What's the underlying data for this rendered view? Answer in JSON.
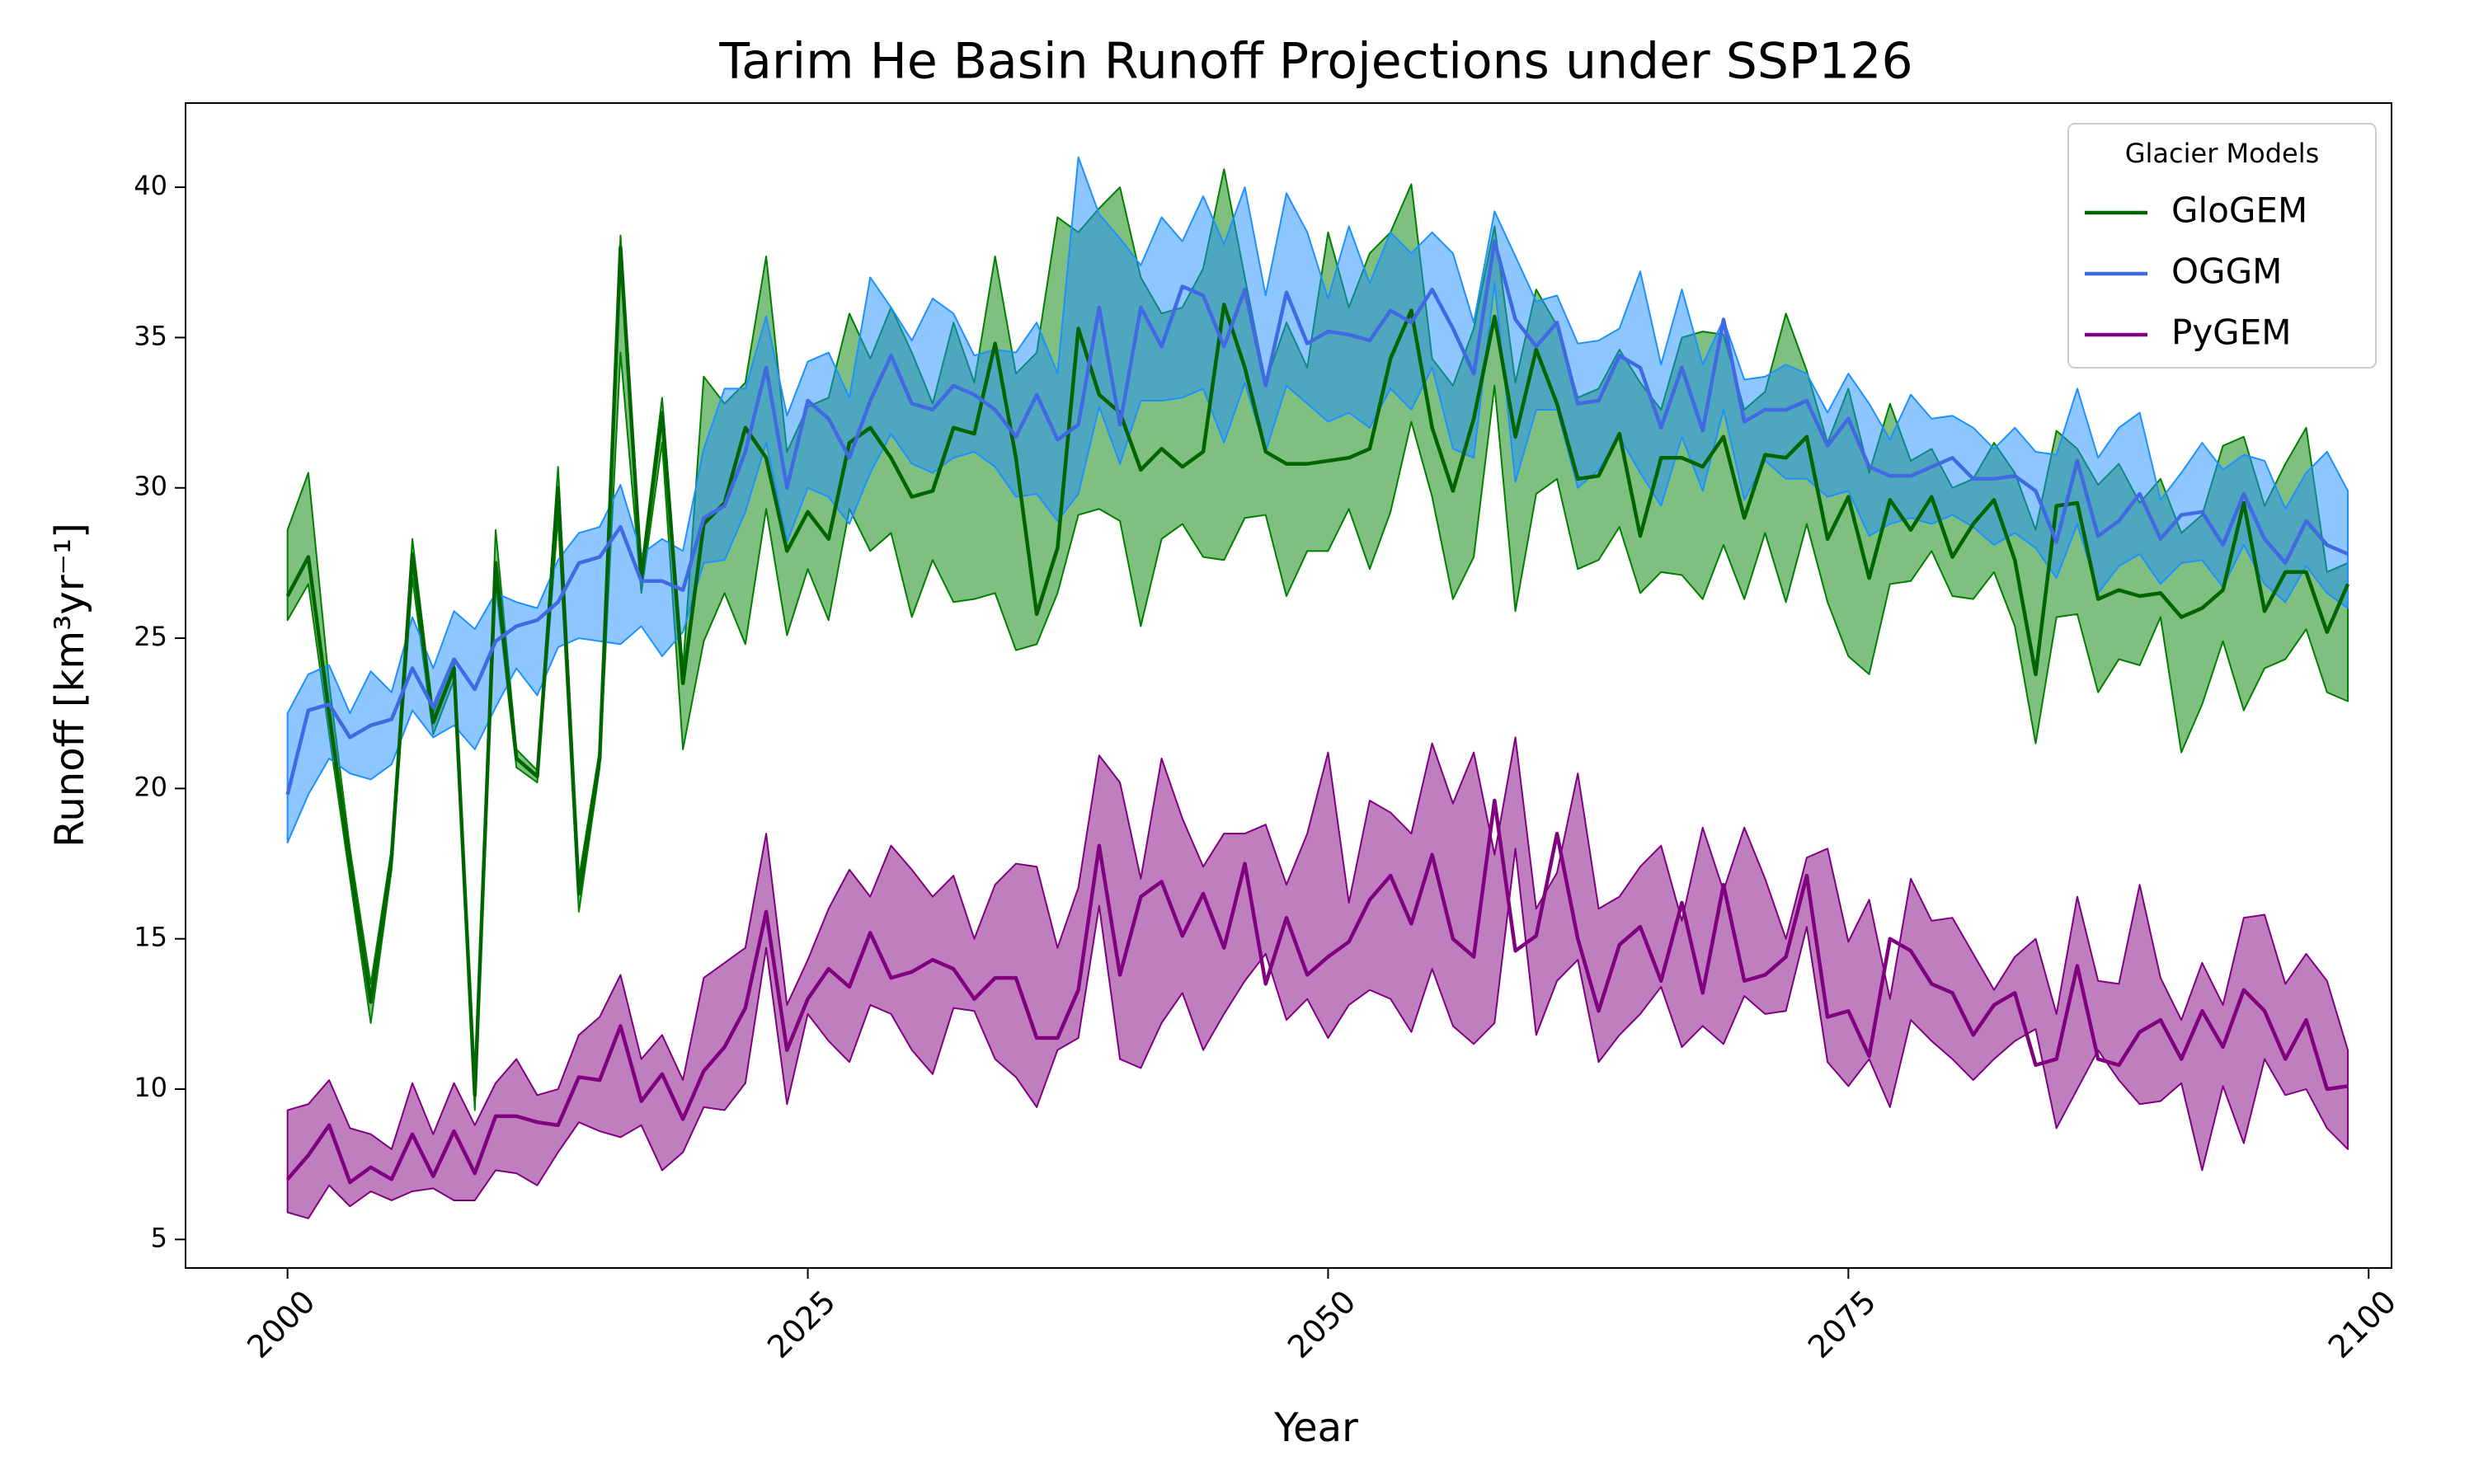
{
  "chart_data": {
    "type": "band-line",
    "title": "Tarim He Basin Runoff Projections under SSP126",
    "x_label": "Year",
    "y_label": "Runoff [km³yr⁻¹]",
    "legend_title": "Glacier Models",
    "legend_position": "upper right",
    "xlim": [
      1995.1,
      2101.1
    ],
    "ylim": [
      4.05,
      42.8
    ],
    "xticks": [
      2000,
      2025,
      2050,
      2075,
      2100
    ],
    "yticks": [
      5,
      10,
      15,
      20,
      25,
      30,
      35,
      40
    ],
    "x": [
      2000,
      2001,
      2002,
      2003,
      2004,
      2005,
      2006,
      2007,
      2008,
      2009,
      2010,
      2011,
      2012,
      2013,
      2014,
      2015,
      2016,
      2017,
      2018,
      2019,
      2020,
      2021,
      2022,
      2023,
      2024,
      2025,
      2026,
      2027,
      2028,
      2029,
      2030,
      2031,
      2032,
      2033,
      2034,
      2035,
      2036,
      2037,
      2038,
      2039,
      2040,
      2041,
      2042,
      2043,
      2044,
      2045,
      2046,
      2047,
      2048,
      2049,
      2050,
      2051,
      2052,
      2053,
      2054,
      2055,
      2056,
      2057,
      2058,
      2059,
      2060,
      2061,
      2062,
      2063,
      2064,
      2065,
      2066,
      2067,
      2068,
      2069,
      2070,
      2071,
      2072,
      2073,
      2074,
      2075,
      2076,
      2077,
      2078,
      2079,
      2080,
      2081,
      2082,
      2083,
      2084,
      2085,
      2086,
      2087,
      2088,
      2089,
      2090,
      2091,
      2092,
      2093,
      2094,
      2095,
      2096,
      2097,
      2098,
      2099
    ],
    "series": [
      {
        "name": "GloGEM",
        "color": "#006400",
        "fill_color": "#008000",
        "values": [
          26.4,
          27.7,
          22.5,
          17.5,
          12.9,
          17.7,
          27.8,
          22.2,
          24.0,
          9.8,
          27.5,
          21.0,
          20.4,
          30.0,
          16.5,
          21.0,
          38.0,
          27.0,
          32.5,
          23.5,
          28.8,
          29.5,
          32.0,
          31.0,
          27.9,
          29.2,
          28.3,
          31.5,
          32.0,
          31.0,
          29.7,
          29.9,
          32.0,
          31.8,
          34.8,
          31.0,
          25.8,
          28.0,
          35.3,
          33.1,
          32.5,
          30.6,
          31.3,
          30.7,
          31.2,
          36.1,
          34.0,
          31.2,
          30.8,
          30.8,
          30.9,
          31.0,
          31.3,
          34.3,
          35.9,
          32.0,
          29.9,
          32.3,
          35.7,
          31.7,
          34.6,
          32.8,
          30.3,
          30.4,
          31.8,
          28.4,
          31.0,
          31.0,
          30.7,
          31.7,
          29.0,
          31.1,
          31.0,
          31.7,
          28.3,
          29.7,
          27.0,
          29.6,
          28.6,
          29.7,
          27.7,
          28.8,
          29.6,
          27.6,
          23.8,
          29.4,
          29.5,
          26.3,
          26.6,
          26.4,
          26.5,
          25.7,
          26.0,
          26.6,
          29.5,
          25.9,
          27.2,
          27.2,
          25.2,
          26.8
        ],
        "upper": [
          28.6,
          30.5,
          23.5,
          18.0,
          13.5,
          18.0,
          28.3,
          22.5,
          24.3,
          10.2,
          28.6,
          21.3,
          20.6,
          30.7,
          17.0,
          21.3,
          38.4,
          27.3,
          33.0,
          24.0,
          33.7,
          32.8,
          33.5,
          37.7,
          31.2,
          32.7,
          33.0,
          35.8,
          34.3,
          36.0,
          34.5,
          32.8,
          35.5,
          33.5,
          37.7,
          33.8,
          34.5,
          39.0,
          38.5,
          39.3,
          40.0,
          37.0,
          35.8,
          36.0,
          37.3,
          40.6,
          37.0,
          33.5,
          35.5,
          34.0,
          38.5,
          36.0,
          37.8,
          38.5,
          40.1,
          34.3,
          33.4,
          35.3,
          38.7,
          33.5,
          36.6,
          35.4,
          33.0,
          33.3,
          34.6,
          33.5,
          32.6,
          35.0,
          35.2,
          35.1,
          32.6,
          33.2,
          35.8,
          33.9,
          31.5,
          33.3,
          30.5,
          32.8,
          30.9,
          31.3,
          30.0,
          30.3,
          31.5,
          30.5,
          28.6,
          31.9,
          31.3,
          30.1,
          30.8,
          29.5,
          30.3,
          28.5,
          29.1,
          31.4,
          31.7,
          29.4,
          30.8,
          32.0,
          27.2,
          27.5
        ],
        "lower": [
          25.6,
          26.8,
          21.8,
          17.0,
          12.2,
          17.3,
          27.0,
          21.8,
          23.6,
          9.3,
          26.8,
          20.7,
          20.2,
          29.0,
          15.9,
          20.7,
          34.5,
          26.5,
          31.5,
          21.3,
          24.9,
          26.5,
          24.8,
          29.3,
          25.1,
          27.3,
          25.6,
          29.3,
          27.9,
          28.5,
          25.7,
          27.6,
          26.2,
          26.3,
          26.5,
          24.6,
          24.8,
          26.5,
          29.1,
          29.3,
          28.9,
          25.4,
          28.3,
          28.8,
          27.7,
          27.6,
          29.0,
          29.1,
          26.4,
          27.9,
          27.9,
          29.3,
          27.3,
          29.2,
          32.2,
          29.7,
          26.3,
          27.7,
          33.4,
          25.9,
          29.8,
          30.3,
          27.3,
          27.6,
          28.7,
          26.5,
          27.2,
          27.1,
          26.3,
          28.1,
          26.3,
          28.5,
          26.2,
          28.8,
          26.2,
          24.4,
          23.8,
          26.8,
          26.9,
          27.9,
          26.4,
          26.3,
          27.2,
          25.4,
          21.5,
          25.7,
          25.8,
          23.2,
          24.3,
          24.1,
          25.7,
          21.2,
          22.8,
          24.9,
          22.6,
          24.0,
          24.3,
          25.3,
          23.2,
          22.9
        ]
      },
      {
        "name": "OGGM",
        "color": "#4169e1",
        "fill_color": "#1e90ff",
        "values": [
          19.8,
          22.6,
          22.8,
          21.7,
          22.1,
          22.3,
          24.0,
          22.7,
          24.3,
          23.3,
          24.9,
          25.4,
          25.6,
          26.2,
          27.5,
          27.7,
          28.7,
          26.9,
          26.9,
          26.6,
          29.0,
          29.4,
          31.2,
          34.0,
          30.0,
          32.9,
          32.3,
          31.0,
          32.9,
          34.4,
          32.8,
          32.6,
          33.4,
          33.1,
          32.6,
          31.7,
          33.1,
          31.6,
          32.1,
          36.0,
          32.1,
          36.0,
          34.7,
          36.7,
          36.4,
          34.7,
          36.6,
          33.4,
          36.5,
          34.8,
          35.2,
          35.1,
          34.9,
          35.9,
          35.5,
          36.6,
          35.3,
          33.8,
          38.2,
          35.6,
          34.7,
          35.5,
          32.8,
          32.9,
          34.4,
          34.0,
          32.0,
          34.0,
          31.9,
          35.6,
          32.2,
          32.6,
          32.6,
          32.9,
          31.4,
          32.3,
          30.7,
          30.4,
          30.4,
          30.7,
          31.0,
          30.3,
          30.3,
          30.4,
          29.9,
          28.2,
          30.9,
          28.4,
          28.9,
          29.8,
          28.3,
          29.1,
          29.2,
          28.1,
          29.8,
          28.3,
          27.5,
          28.9,
          28.1,
          27.8
        ],
        "upper": [
          22.5,
          23.8,
          24.1,
          22.5,
          23.9,
          23.2,
          25.7,
          24.0,
          25.9,
          25.3,
          26.5,
          26.2,
          26.0,
          27.6,
          28.5,
          28.7,
          30.1,
          27.8,
          28.3,
          27.9,
          31.3,
          33.3,
          33.3,
          35.7,
          32.4,
          34.2,
          34.5,
          33.0,
          37.0,
          36.0,
          34.9,
          36.3,
          35.8,
          34.4,
          34.6,
          34.5,
          35.5,
          33.8,
          41.0,
          39.1,
          38.3,
          37.4,
          39.0,
          38.2,
          39.7,
          38.1,
          40.0,
          36.4,
          39.8,
          38.5,
          36.3,
          38.7,
          36.8,
          38.5,
          37.8,
          38.5,
          37.8,
          35.5,
          39.2,
          37.7,
          36.2,
          36.4,
          34.8,
          34.9,
          35.3,
          37.2,
          34.1,
          36.6,
          34.1,
          35.6,
          33.6,
          33.7,
          34.1,
          33.8,
          32.5,
          33.8,
          32.8,
          31.6,
          33.1,
          32.3,
          32.4,
          32.0,
          31.3,
          32.0,
          31.2,
          31.1,
          33.3,
          31.0,
          32.0,
          32.5,
          29.6,
          30.5,
          31.5,
          30.6,
          31.1,
          30.9,
          29.3,
          30.5,
          31.2,
          29.9
        ],
        "lower": [
          18.2,
          19.8,
          21.0,
          20.5,
          20.3,
          20.8,
          22.6,
          21.7,
          22.1,
          21.3,
          22.7,
          24.0,
          23.1,
          24.7,
          25.0,
          24.9,
          24.8,
          25.4,
          24.4,
          25.2,
          27.5,
          27.6,
          29.2,
          31.5,
          28.2,
          30.0,
          29.7,
          28.8,
          30.5,
          31.8,
          30.8,
          30.5,
          31.0,
          31.2,
          30.7,
          29.7,
          29.8,
          28.9,
          29.8,
          32.7,
          30.8,
          32.9,
          32.9,
          33.0,
          33.3,
          31.5,
          33.5,
          31.2,
          33.4,
          32.8,
          32.2,
          32.5,
          32.0,
          33.3,
          32.6,
          34.0,
          31.3,
          31.0,
          36.8,
          30.2,
          32.6,
          32.6,
          30.0,
          30.6,
          31.7,
          30.5,
          29.4,
          31.7,
          29.9,
          32.6,
          29.6,
          30.9,
          30.3,
          30.3,
          29.7,
          29.9,
          28.4,
          28.8,
          29.0,
          28.8,
          29.1,
          28.7,
          28.1,
          28.5,
          28.0,
          27.0,
          28.8,
          26.5,
          27.4,
          27.8,
          26.8,
          27.5,
          27.6,
          26.7,
          28.1,
          26.8,
          26.2,
          27.4,
          26.5,
          26.0
        ]
      },
      {
        "name": "PyGEM",
        "color": "#800080",
        "fill_color": "#800080",
        "values": [
          7.0,
          7.8,
          8.8,
          6.9,
          7.4,
          7.0,
          8.5,
          7.1,
          8.6,
          7.2,
          9.1,
          9.1,
          8.9,
          8.8,
          10.4,
          10.3,
          12.1,
          9.6,
          10.5,
          9.0,
          10.6,
          11.4,
          12.7,
          15.9,
          11.3,
          13.0,
          14.0,
          13.4,
          15.2,
          13.7,
          13.9,
          14.3,
          14.0,
          13.0,
          13.7,
          13.7,
          11.7,
          11.7,
          13.3,
          18.1,
          13.8,
          16.4,
          16.9,
          15.1,
          16.5,
          14.7,
          17.5,
          13.5,
          15.7,
          13.8,
          14.4,
          14.9,
          16.3,
          17.1,
          15.5,
          17.8,
          15.0,
          14.4,
          19.6,
          14.6,
          15.1,
          18.5,
          15.0,
          12.6,
          14.8,
          15.4,
          13.6,
          16.2,
          13.2,
          16.8,
          13.6,
          13.8,
          14.4,
          17.1,
          12.4,
          12.6,
          11.1,
          15.0,
          14.6,
          13.5,
          13.2,
          11.8,
          12.8,
          13.2,
          10.8,
          11.0,
          14.1,
          11.0,
          10.8,
          11.9,
          12.3,
          11.0,
          12.6,
          11.4,
          13.3,
          12.6,
          11.0,
          12.3,
          10.0,
          10.1
        ],
        "upper": [
          9.3,
          9.5,
          10.3,
          8.7,
          8.5,
          8.0,
          10.2,
          8.5,
          10.2,
          8.8,
          10.2,
          11.0,
          9.8,
          10.0,
          11.8,
          12.4,
          13.8,
          11.0,
          11.8,
          10.3,
          13.7,
          14.2,
          14.7,
          18.5,
          12.8,
          14.3,
          16.0,
          17.3,
          16.4,
          18.1,
          17.3,
          16.4,
          17.1,
          15.0,
          16.8,
          17.5,
          17.4,
          14.7,
          16.7,
          21.1,
          20.2,
          17.0,
          21.0,
          19.0,
          17.4,
          18.5,
          18.5,
          18.8,
          16.8,
          18.5,
          21.2,
          16.2,
          19.6,
          19.2,
          18.5,
          21.5,
          19.5,
          21.2,
          17.8,
          21.7,
          16.0,
          17.2,
          20.5,
          16.0,
          16.4,
          17.4,
          18.1,
          15.6,
          18.7,
          16.6,
          18.7,
          17.0,
          15.0,
          17.7,
          18.0,
          14.9,
          16.3,
          13.0,
          17.0,
          15.6,
          15.7,
          14.5,
          13.3,
          14.4,
          15.0,
          12.5,
          16.4,
          13.6,
          13.5,
          16.8,
          13.7,
          12.3,
          14.2,
          12.8,
          15.7,
          15.8,
          13.5,
          14.5,
          13.6,
          11.3
        ],
        "lower": [
          5.9,
          5.7,
          6.8,
          6.1,
          6.6,
          6.3,
          6.6,
          6.7,
          6.3,
          6.3,
          7.3,
          7.2,
          6.8,
          7.9,
          8.9,
          8.6,
          8.4,
          8.8,
          7.3,
          7.9,
          9.4,
          9.3,
          10.2,
          14.7,
          9.5,
          12.5,
          11.6,
          10.9,
          12.8,
          12.5,
          11.3,
          10.5,
          12.7,
          12.6,
          11.0,
          10.4,
          9.4,
          11.3,
          11.7,
          16.1,
          11.0,
          10.7,
          12.2,
          13.2,
          11.3,
          12.5,
          13.6,
          14.5,
          12.3,
          13.0,
          11.7,
          12.8,
          13.3,
          13.0,
          11.9,
          14.0,
          12.1,
          11.5,
          12.2,
          18.0,
          11.8,
          13.6,
          14.3,
          10.9,
          11.8,
          12.5,
          13.4,
          11.4,
          12.1,
          11.5,
          13.1,
          12.5,
          12.6,
          15.4,
          10.9,
          10.1,
          11.0,
          9.4,
          12.3,
          11.6,
          11.0,
          10.3,
          11.0,
          11.6,
          12.0,
          8.7,
          10.0,
          11.3,
          10.3,
          9.5,
          9.6,
          10.2,
          7.3,
          10.1,
          8.2,
          11.0,
          9.8,
          10.0,
          8.7,
          8.0
        ]
      }
    ]
  }
}
